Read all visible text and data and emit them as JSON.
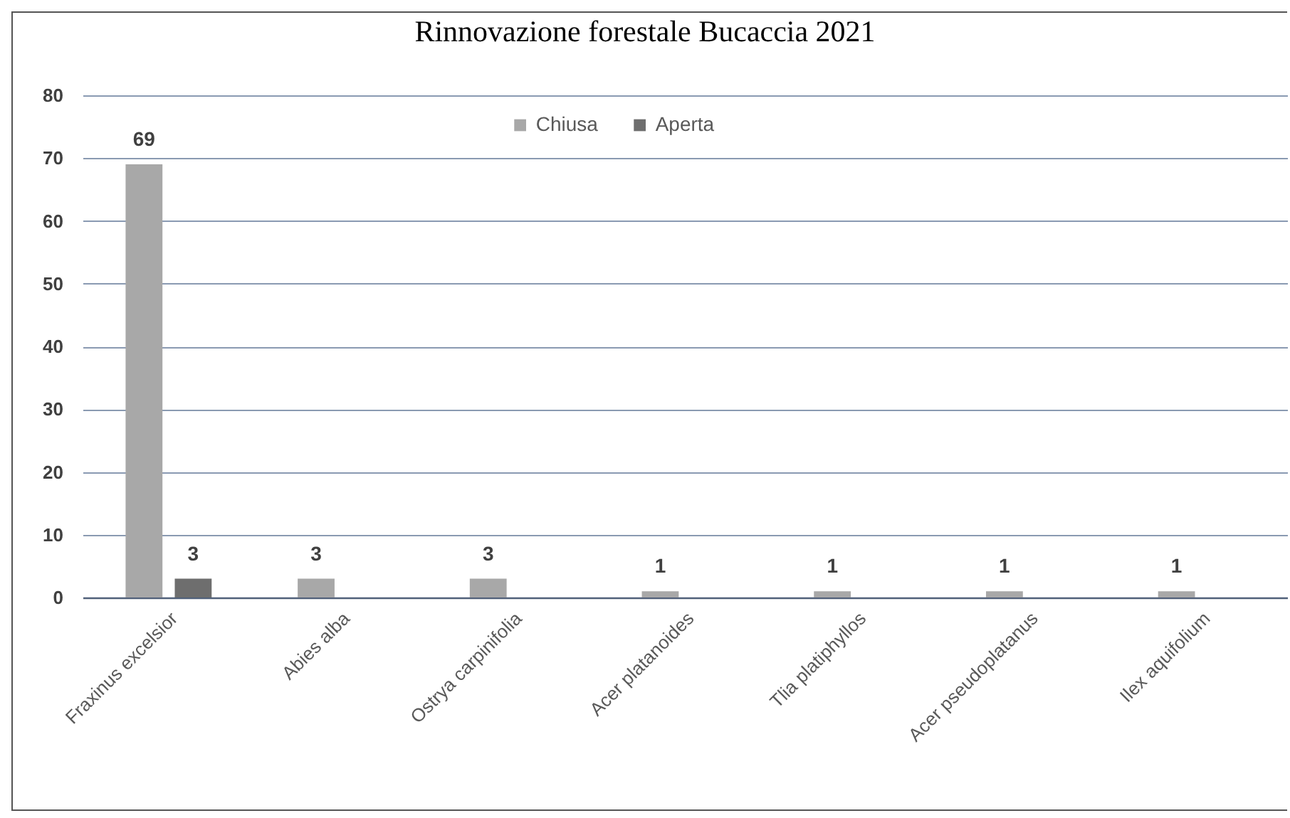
{
  "chart_data": {
    "type": "bar",
    "title": "Rinnovazione forestale Bucaccia 2021",
    "categories": [
      "Fraxinus excelsior",
      "Abies alba",
      "Ostrya carpinifolia",
      "Acer platanoides",
      "Tlia platiphyllos",
      "Acer pseudoplatanus",
      "Ilex aquifolium"
    ],
    "series": [
      {
        "name": "Chiusa",
        "color": "#a8a8a8",
        "values": [
          69,
          3,
          3,
          1,
          1,
          1,
          1
        ]
      },
      {
        "name": "Aperta",
        "color": "#6e6e6e",
        "values": [
          3,
          null,
          null,
          null,
          null,
          null,
          null
        ]
      }
    ],
    "ylim": [
      0,
      80
    ],
    "yticks": [
      0,
      10,
      20,
      30,
      40,
      50,
      60,
      70,
      80
    ],
    "grid": "y",
    "legend": "top",
    "data_labels": true
  }
}
